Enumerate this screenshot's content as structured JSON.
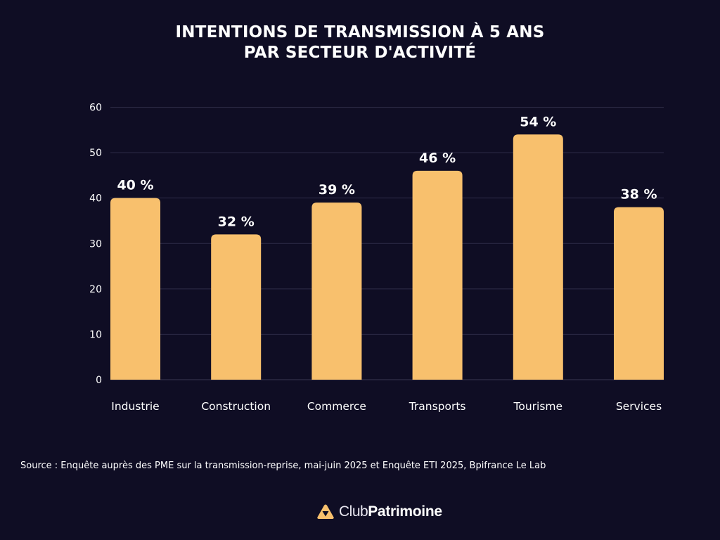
{
  "chart_data": {
    "type": "bar",
    "title": [
      "INTENTIONS DE TRANSMISSION À 5 ANS",
      "PAR SECTEUR D'ACTIVITÉ"
    ],
    "categories": [
      "Industrie",
      "Construction",
      "Commerce",
      "Transports",
      "Tourisme",
      "Services"
    ],
    "values": [
      40,
      32,
      39,
      46,
      54,
      38
    ],
    "data_labels": [
      "40 %",
      "32 %",
      "39 %",
      "46 %",
      "54 %",
      "38 %"
    ],
    "xlabel": "",
    "ylabel": "",
    "ylim": [
      0,
      60
    ],
    "yticks": [
      0,
      10,
      20,
      30,
      40,
      50,
      60
    ],
    "grid": true,
    "legend": "none",
    "colors": {
      "bar": "#f8c06d",
      "background": "#0f0d24",
      "grid": "#2f2d48",
      "text": "#ffffff"
    }
  },
  "source": "Source : Enquête auprès des PME sur la transmission-reprise, mai-juin 2025 et Enquête ETI 2025, Bpifrance Le Lab",
  "logo": {
    "part1": "Club",
    "part2": "Patrimoine",
    "icon": "triangle-logo-icon",
    "color": "#f8c06d"
  }
}
